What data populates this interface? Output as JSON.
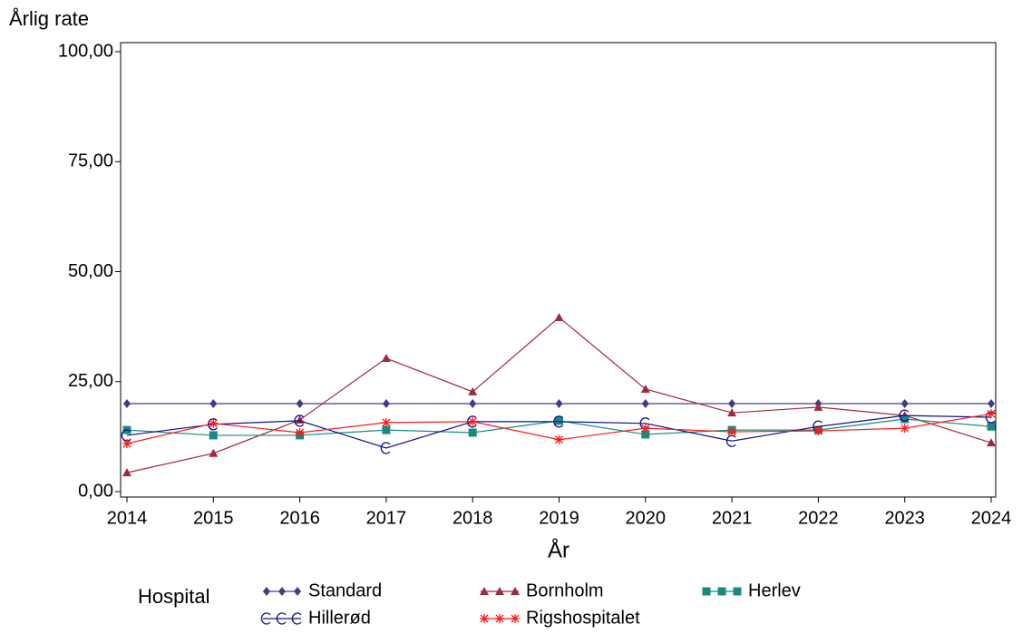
{
  "chart_data": {
    "type": "line",
    "ylabel": "Årlig rate",
    "xlabel": "År",
    "legend_title": "Hospital",
    "x": [
      2014,
      2015,
      2016,
      2017,
      2018,
      2019,
      2020,
      2021,
      2022,
      2023,
      2024
    ],
    "xlim": [
      2014,
      2024
    ],
    "xticks": [
      2014,
      2015,
      2016,
      2017,
      2018,
      2019,
      2020,
      2021,
      2022,
      2023,
      2024
    ],
    "ylim": [
      0,
      100
    ],
    "yticks": [
      {
        "value": 0,
        "label": "0,00"
      },
      {
        "value": 25,
        "label": "25,00"
      },
      {
        "value": 50,
        "label": "50,00"
      },
      {
        "value": 75,
        "label": "75,00"
      },
      {
        "value": 100,
        "label": "100,00"
      }
    ],
    "series": [
      {
        "name": "Standard",
        "color": "#3d3d8f",
        "marker": "diamond",
        "values": [
          20,
          20,
          20,
          20,
          20,
          20,
          20,
          20,
          20,
          20,
          20
        ]
      },
      {
        "name": "Bornholm",
        "color": "#9e2a3c",
        "marker": "triangle",
        "values": [
          4.3,
          8.7,
          16.3,
          30.3,
          22.7,
          39.6,
          23.3,
          17.9,
          19.2,
          17.3,
          11.1
        ]
      },
      {
        "name": "Herlev",
        "color": "#1a8a80",
        "marker": "square",
        "values": [
          14.0,
          12.8,
          12.8,
          14.0,
          13.4,
          16.1,
          13.0,
          14.0,
          14.0,
          16.5,
          14.8
        ]
      },
      {
        "name": "Hillerød",
        "color": "#10108a",
        "marker": "c",
        "values": [
          12.8,
          15.3,
          16.1,
          9.9,
          15.9,
          15.9,
          15.5,
          11.5,
          14.8,
          17.3,
          16.9
        ]
      },
      {
        "name": "Rigshospitalet",
        "color": "#ff1a1a",
        "marker": "star",
        "values": [
          10.9,
          15.5,
          13.4,
          15.7,
          15.9,
          11.8,
          14.4,
          13.6,
          13.8,
          14.4,
          17.7
        ]
      }
    ]
  }
}
